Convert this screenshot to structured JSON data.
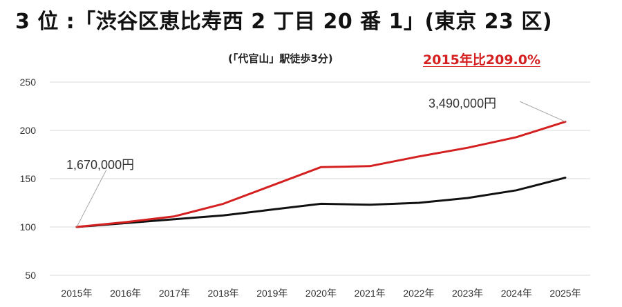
{
  "chart_data": {
    "type": "line",
    "title": "3 位 :「渋谷区恵比寿西 2 丁目 20 番 1」(東京 23 区)",
    "subtitle": "(「代官山」駅徒歩3分)",
    "ratio_text": "2015年比209.0%",
    "categories": [
      "2015年",
      "2016年",
      "2017年",
      "2018年",
      "2019年",
      "2020年",
      "2021年",
      "2022年",
      "2023年",
      "2024年",
      "2025年"
    ],
    "series": [
      {
        "color": "#d42020",
        "values": [
          100,
          105,
          111,
          124,
          143,
          162,
          163,
          173,
          182,
          193,
          209
        ]
      },
      {
        "color": "#111111",
        "values": [
          100,
          104,
          108,
          112,
          118,
          124,
          123,
          125,
          130,
          138,
          151
        ]
      }
    ],
    "ylim": [
      50,
      250
    ],
    "yticks": [
      50,
      100,
      150,
      200,
      250
    ],
    "grid": true,
    "annotations": [
      {
        "text": "1,670,000円",
        "category_index": 0,
        "series_index": 0
      },
      {
        "text": "3,490,000円",
        "category_index": 10,
        "series_index": 0
      }
    ]
  }
}
